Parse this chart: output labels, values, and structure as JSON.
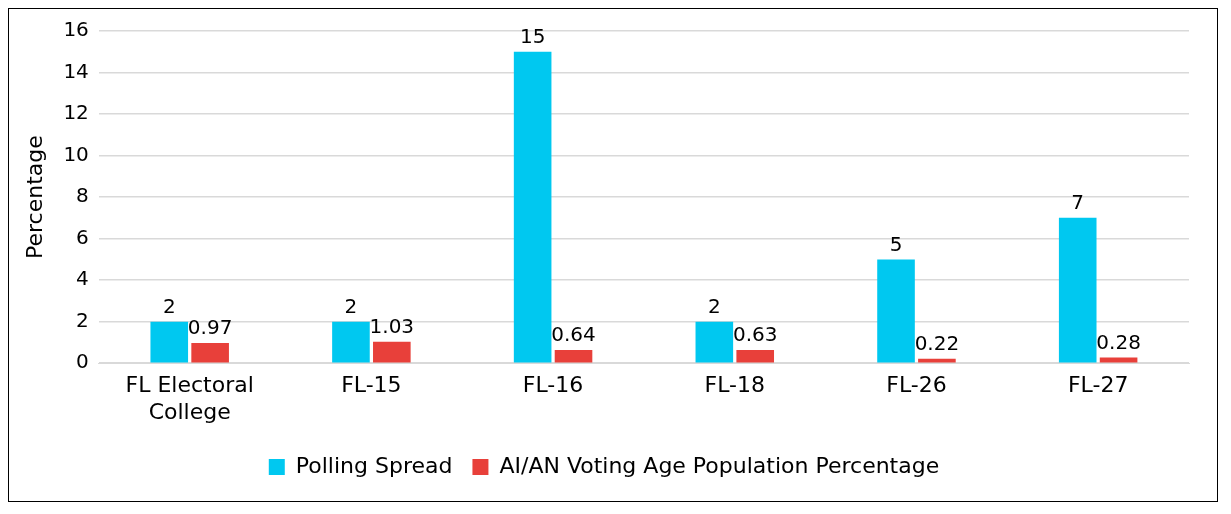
{
  "chart_data": {
    "type": "bar",
    "ylabel": "Percentage",
    "categories": [
      "FL Electoral College",
      "FL-15",
      "FL-16",
      "FL-18",
      "FL-26",
      "FL-27"
    ],
    "series": [
      {
        "name": "Polling Spread",
        "color": "#00c8f0",
        "values": [
          2,
          2,
          15,
          2,
          5,
          7
        ]
      },
      {
        "name": "AI/AN Voting Age Population Percentage",
        "color": "#e8403a",
        "values": [
          0.97,
          1.03,
          0.64,
          0.63,
          0.22,
          0.28
        ]
      }
    ],
    "ylim": [
      0,
      16
    ],
    "yticks": [
      0,
      2,
      4,
      6,
      8,
      10,
      12,
      14,
      16
    ],
    "grid": "y",
    "legend": "bottom",
    "data_labels": true
  }
}
